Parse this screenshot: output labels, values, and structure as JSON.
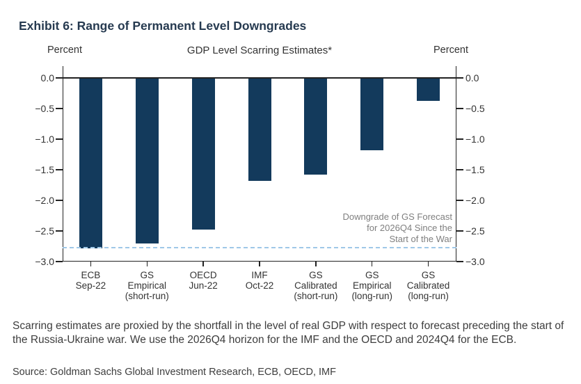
{
  "exhibit": {
    "title": "Exhibit 6: Range of Permanent Level Downgrades"
  },
  "chart": {
    "left_unit_label": "Percent",
    "right_unit_label": "Percent",
    "title": "GDP Level Scarring Estimates*"
  },
  "chart_data": {
    "type": "bar",
    "title": "GDP Level Scarring Estimates*",
    "unit": "Percent",
    "categories": [
      [
        "ECB",
        "Sep-22"
      ],
      [
        "GS",
        "Empirical",
        "(short-run)"
      ],
      [
        "OECD",
        "Jun-22"
      ],
      [
        "IMF",
        "Oct-22"
      ],
      [
        "GS",
        "Calibrated",
        "(short-run)"
      ],
      [
        "GS",
        "Empirical",
        "(long-run)"
      ],
      [
        "GS",
        "Calibrated",
        "(long-run)"
      ]
    ],
    "values": [
      -2.78,
      -2.7,
      -2.48,
      -1.68,
      -1.58,
      -1.18,
      -0.38
    ],
    "ylim": [
      -3.0,
      0.0
    ],
    "yticks": [
      0.0,
      -0.5,
      -1.0,
      -1.5,
      -2.0,
      -2.5,
      -3.0
    ],
    "grid": false,
    "legend": "none",
    "bar_color": "#133a5c",
    "axis_color": "#222222",
    "reference_line": {
      "value": -2.76,
      "style": "dashed",
      "color": "#9fc8e8",
      "label_lines": [
        "Downgrade of GS Forecast",
        "for 2026Q4 Since the",
        "Start of the War"
      ],
      "label": "Downgrade of GS Forecast for 2026Q4 Since the Start of the War"
    }
  },
  "footnote": "Scarring estimates are proxied by the shortfall in the level of real GDP with respect to forecast preceding the start of the Russia-Ukraine war. We use the 2026Q4 horizon for the IMF and the OECD and 2024Q4 for the ECB.",
  "source": "Source: Goldman Sachs Global Investment Research, ECB, OECD, IMF"
}
